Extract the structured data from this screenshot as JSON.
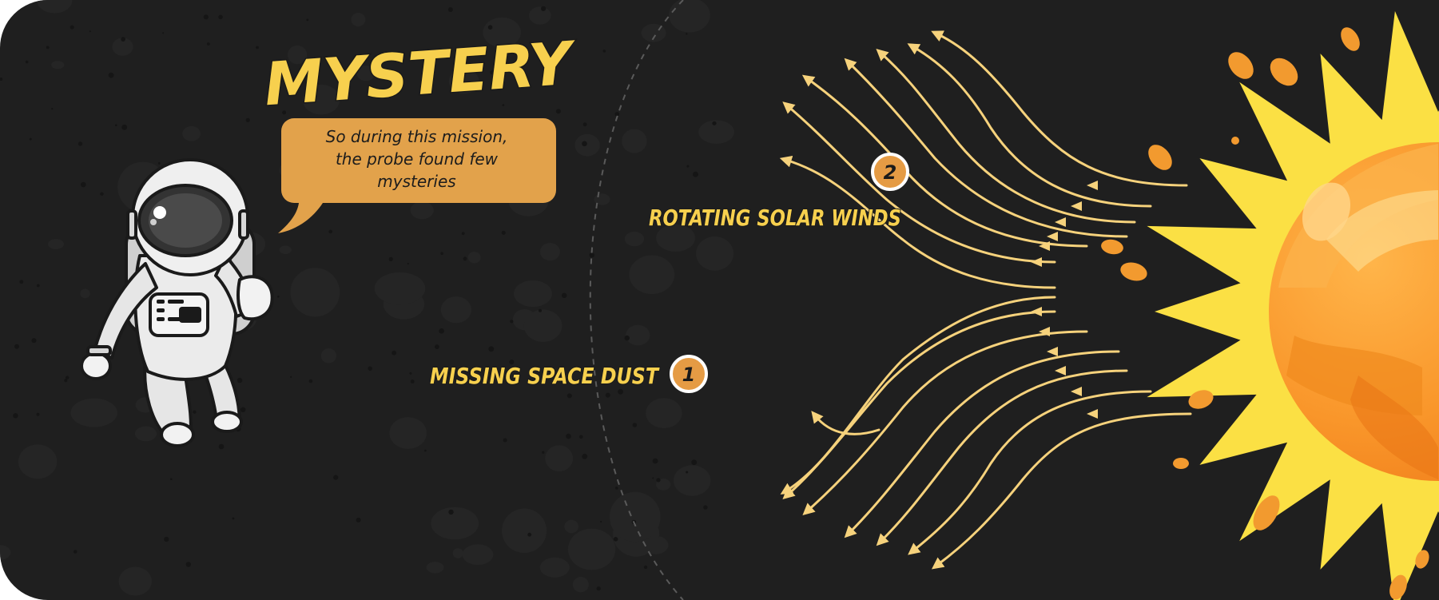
{
  "title": "MYSTERY",
  "speech_bubble": {
    "lines": [
      "So during this mission,",
      "the probe found few",
      "mysteries"
    ]
  },
  "items": [
    {
      "number": "1",
      "label": "MISSING SPACE DUST"
    },
    {
      "number": "2",
      "label": "ROTATING SOLAR WINDS"
    }
  ],
  "colors": {
    "background": "#1f1f1f",
    "title": "#f7d04e",
    "bubble": "#e2a24b",
    "accent_orange": "#e59b44",
    "wind_lines": "#f6d27c",
    "sun_rays": "#fbe044",
    "sun_core": "#f99a2a"
  },
  "icons": [
    "astronaut-icon",
    "sun-icon",
    "asteroid-icon"
  ]
}
